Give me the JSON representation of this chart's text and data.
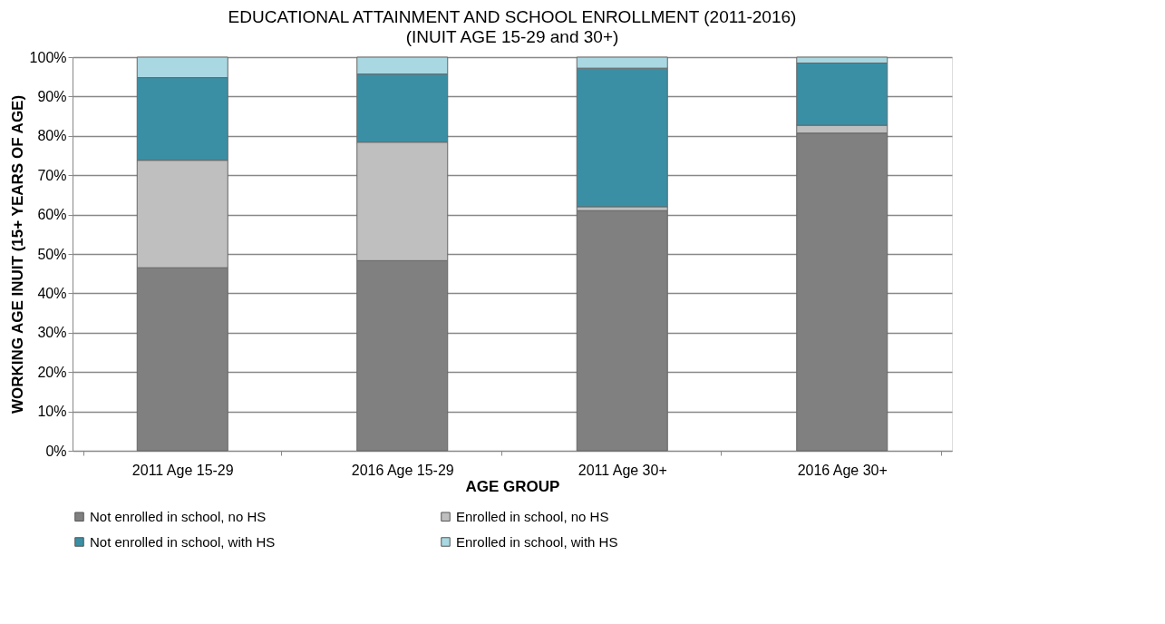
{
  "chart_data": {
    "type": "bar",
    "title": "EDUCATIONAL ATTAINMENT AND SCHOOL ENROLLMENT (2011-2016)",
    "subtitle": "(INUIT AGE 15-29 and 30+)",
    "xlabel": "AGE GROUP",
    "ylabel": "WORKING AGE INUIT (15+ YEARS OF AGE)",
    "categories": [
      "2011 Age 15-29",
      "2016 Age 15-29",
      "2011 Age 30+",
      "2016 Age 30+"
    ],
    "stacked": true,
    "series": [
      {
        "name": "Not enrolled in school, no HS",
        "color": "#808080",
        "values": [
          46.5,
          48.3,
          61.0,
          80.7
        ]
      },
      {
        "name": "Enrolled in school, no HS",
        "color": "#bfbfbf",
        "values": [
          27.3,
          30.1,
          1.0,
          2.0
        ]
      },
      {
        "name": "Not enrolled in school, with HS",
        "color": "#3a8fa5",
        "values": [
          21.0,
          17.3,
          35.2,
          15.8
        ]
      },
      {
        "name": "Enrolled in school, with HS",
        "color": "#a9d8e2",
        "values": [
          5.2,
          4.3,
          2.8,
          1.5
        ]
      }
    ],
    "ylim": [
      0,
      100
    ],
    "yticks": [
      {
        "value": 0,
        "label": "0%"
      },
      {
        "value": 10,
        "label": "10%"
      },
      {
        "value": 20,
        "label": "20%"
      },
      {
        "value": 30,
        "label": "30%"
      },
      {
        "value": 40,
        "label": "40%"
      },
      {
        "value": 50,
        "label": "50%"
      },
      {
        "value": 60,
        "label": "60%"
      },
      {
        "value": 70,
        "label": "70%"
      },
      {
        "value": 80,
        "label": "80%"
      },
      {
        "value": 90,
        "label": "90%"
      },
      {
        "value": 100,
        "label": "100%"
      }
    ],
    "grid": "y",
    "legend": "bottom"
  }
}
